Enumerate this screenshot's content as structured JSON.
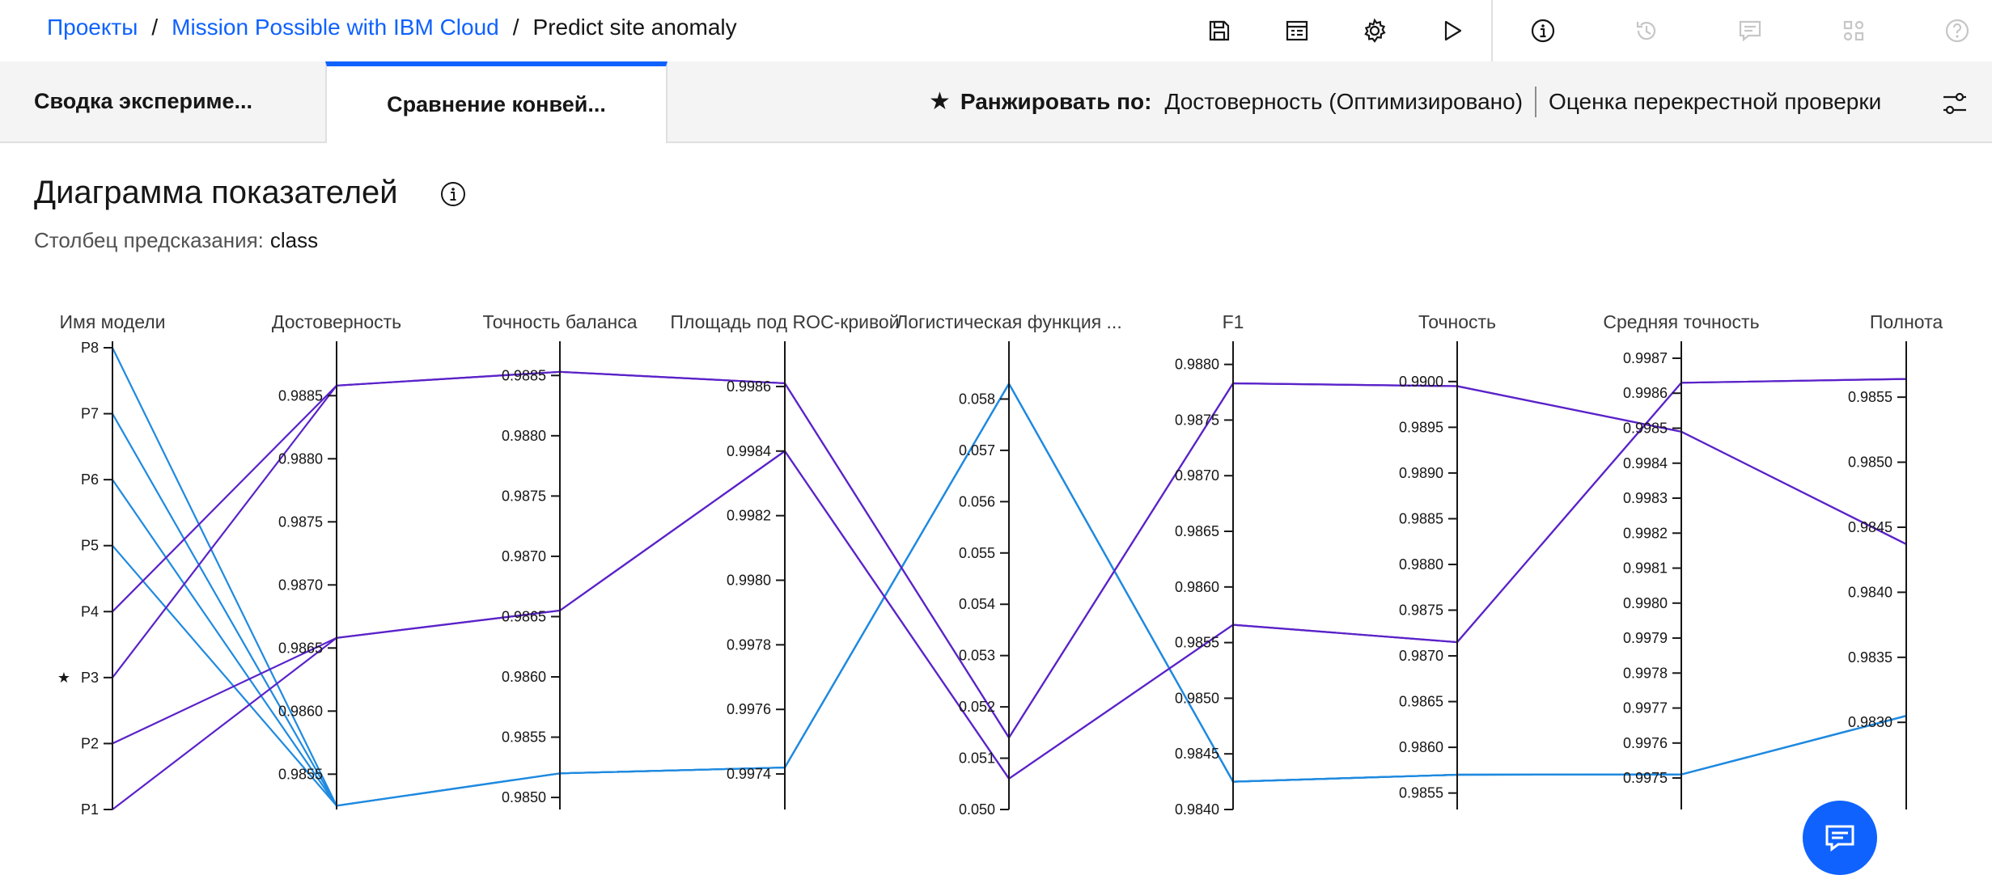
{
  "breadcrumb": {
    "items": [
      "Проекты",
      "Mission Possible with IBM Cloud"
    ],
    "separator": "/",
    "current": "Predict site anomaly"
  },
  "toolbar": {
    "icons": [
      "save-icon",
      "notebook-icon",
      "settings-icon",
      "run-icon",
      "info-icon",
      "history-icon",
      "comments-icon",
      "apps-icon",
      "help-icon"
    ]
  },
  "tabs": [
    {
      "label": "Сводка экспериме...",
      "selected": false
    },
    {
      "label": "Сравнение конвей...",
      "selected": true
    }
  ],
  "rank": {
    "star": "★",
    "label": "Ранжировать по:",
    "metric": "Достоверность (Оптимизировано)",
    "method": "Оценка перекрестной проверки"
  },
  "section": {
    "title": "Диаграмма показателей",
    "prediction_label": "Столбец предсказания:",
    "prediction_value": "class"
  },
  "colors": {
    "accent": "#0f62fe",
    "line_blue": "#1f8ae0",
    "line_purple": "#5a22c9"
  },
  "chart_data": {
    "type": "parallel-coordinates",
    "axes": [
      {
        "name": "Имя модели",
        "categorical": true,
        "ticks": [
          "P8",
          "P7",
          "P6",
          "P5",
          "P4",
          "P3",
          "P2",
          "P1"
        ],
        "starred": "P3"
      },
      {
        "name": "Достоверность",
        "min": 0.98522,
        "max": 0.98888,
        "ticks": [
          "0.9885",
          "0.9880",
          "0.9875",
          "0.9870",
          "0.9865",
          "0.9860",
          "0.9855"
        ]
      },
      {
        "name": "Точность баланса",
        "min": 0.9849,
        "max": 0.98873,
        "ticks": [
          "0.9885",
          "0.9880",
          "0.9875",
          "0.9870",
          "0.9865",
          "0.9860",
          "0.9855",
          "0.9850"
        ]
      },
      {
        "name": "Площадь под ROC-кривой",
        "min": 0.99729,
        "max": 0.99872,
        "ticks": [
          "0.9986",
          "0.9984",
          "0.9982",
          "0.9980",
          "0.9978",
          "0.9976",
          "0.9974"
        ]
      },
      {
        "name": "Логистическая функция ...",
        "min": 0.05,
        "max": 0.059,
        "ticks": [
          "0.058",
          "0.057",
          "0.056",
          "0.055",
          "0.054",
          "0.053",
          "0.052",
          "0.051",
          "0.050"
        ]
      },
      {
        "name": "F1",
        "min": 0.984,
        "max": 0.98815,
        "ticks": [
          "0.9880",
          "0.9875",
          "0.9870",
          "0.9865",
          "0.9860",
          "0.9855",
          "0.9850",
          "0.9845",
          "0.9840"
        ]
      },
      {
        "name": "Точность",
        "min": 0.98532,
        "max": 0.99037,
        "ticks": [
          "0.9900",
          "0.9895",
          "0.9890",
          "0.9885",
          "0.9880",
          "0.9875",
          "0.9870",
          "0.9865",
          "0.9860",
          "0.9855"
        ]
      },
      {
        "name": "Средняя точность",
        "min": 0.99741,
        "max": 0.99873,
        "ticks": [
          "0.9987",
          "0.9986",
          "0.9985",
          "0.9984",
          "0.9983",
          "0.9982",
          "0.9981",
          "0.9980",
          "0.9979",
          "0.9978",
          "0.9977",
          "0.9976",
          "0.9975"
        ]
      },
      {
        "name": "Полнота",
        "min": 0.98233,
        "max": 0.98588,
        "ticks": [
          "0.9855",
          "0.9850",
          "0.9845",
          "0.9840",
          "0.9835",
          "0.9830"
        ]
      }
    ],
    "series": [
      {
        "model": "P8",
        "color": "blue",
        "values": [
          0.98525,
          0.9852,
          0.99742,
          0.0583,
          0.98425,
          0.9857,
          0.99751,
          0.98305
        ]
      },
      {
        "model": "P7",
        "color": "blue",
        "values": [
          0.98525,
          0.9852,
          0.99742,
          0.0583,
          0.98425,
          0.9857,
          0.99751,
          0.98305
        ]
      },
      {
        "model": "P6",
        "color": "blue",
        "values": [
          0.98525,
          0.9852,
          0.99742,
          0.0583,
          0.98425,
          0.9857,
          0.99751,
          0.98305
        ]
      },
      {
        "model": "P5",
        "color": "blue",
        "values": [
          0.98525,
          0.9852,
          0.99742,
          0.0583,
          0.98425,
          0.9857,
          0.99751,
          0.98305
        ]
      },
      {
        "model": "P4",
        "color": "purple",
        "values": [
          0.98858,
          0.98853,
          0.99861,
          0.0514,
          0.98783,
          0.98995,
          0.99849,
          0.98437
        ]
      },
      {
        "model": "P3",
        "color": "purple",
        "values": [
          0.98858,
          0.98853,
          0.99861,
          0.0514,
          0.98783,
          0.98995,
          0.99849,
          0.98437
        ]
      },
      {
        "model": "P2",
        "color": "purple",
        "values": [
          0.98658,
          0.98655,
          0.9984,
          0.0506,
          0.98566,
          0.98715,
          0.99863,
          0.98564
        ]
      },
      {
        "model": "P1",
        "color": "purple",
        "values": [
          0.98658,
          0.98655,
          0.9984,
          0.0506,
          0.98566,
          0.98715,
          0.99863,
          0.98564
        ]
      }
    ]
  },
  "chat": {
    "icon": "chat-icon"
  }
}
